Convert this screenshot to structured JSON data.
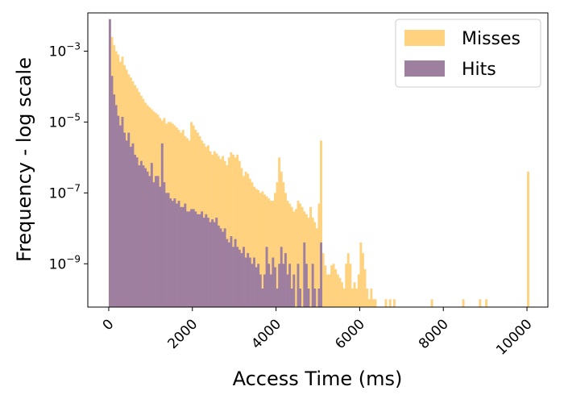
{
  "chart_data": {
    "type": "histogram",
    "title": "",
    "xlabel": "Access Time (ms)",
    "ylabel": "Frequency - log scale",
    "xlim": [
      -500,
      10500
    ],
    "ylim": [
      6e-11,
      0.012
    ],
    "yscale": "log",
    "grid": false,
    "legend_position": "top-right",
    "bin_width_ms": 50,
    "x_ticks": [
      0,
      2000,
      4000,
      6000,
      8000,
      10000
    ],
    "x_tick_labels": [
      "0",
      "2000",
      "4000",
      "6000",
      "8000",
      "10000"
    ],
    "y_ticks": [
      1e-09,
      1e-07,
      1e-05,
      0.001
    ],
    "y_tick_labels": [
      {
        "base": "10",
        "exp": "−9"
      },
      {
        "base": "10",
        "exp": "−7"
      },
      {
        "base": "10",
        "exp": "−5"
      },
      {
        "base": "10",
        "exp": "−3"
      }
    ],
    "series": [
      {
        "name": "Misses",
        "color": "#ffd27f",
        "bins": [
          [
            0,
            0.002
          ],
          [
            50,
            0.0025
          ],
          [
            100,
            0.0015
          ],
          [
            150,
            0.001
          ],
          [
            200,
            0.0008
          ],
          [
            250,
            0.0005
          ],
          [
            300,
            0.0007
          ],
          [
            350,
            0.0004
          ],
          [
            400,
            0.0003
          ],
          [
            450,
            0.00022
          ],
          [
            500,
            0.00018
          ],
          [
            550,
            0.00014
          ],
          [
            600,
            0.00011
          ],
          [
            650,
            9e-05
          ],
          [
            700,
            7e-05
          ],
          [
            750,
            5.5e-05
          ],
          [
            800,
            4.5e-05
          ],
          [
            850,
            3.5e-05
          ],
          [
            900,
            3e-05
          ],
          [
            950,
            2.6e-05
          ],
          [
            1000,
            2.3e-05
          ],
          [
            1050,
            2e-05
          ],
          [
            1100,
            1.8e-05
          ],
          [
            1150,
            1.6e-05
          ],
          [
            1200,
            1.3e-05
          ],
          [
            1250,
            1.1e-05
          ],
          [
            1300,
            1.3e-05
          ],
          [
            1350,
            9e-06
          ],
          [
            1400,
            1e-05
          ],
          [
            1450,
            1e-05
          ],
          [
            1500,
            9e-06
          ],
          [
            1550,
            8e-06
          ],
          [
            1600,
            7e-06
          ],
          [
            1650,
            6e-06
          ],
          [
            1700,
            5e-06
          ],
          [
            1750,
            6e-06
          ],
          [
            1800,
            4e-06
          ],
          [
            1850,
            3.5e-06
          ],
          [
            1900,
            3e-06
          ],
          [
            1950,
            1e-05
          ],
          [
            2000,
            8e-06
          ],
          [
            2050,
            6e-06
          ],
          [
            2100,
            5e-06
          ],
          [
            2150,
            4e-06
          ],
          [
            2200,
            3e-06
          ],
          [
            2250,
            2.5e-06
          ],
          [
            2300,
            2e-06
          ],
          [
            2350,
            2.2e-06
          ],
          [
            2400,
            1.5e-06
          ],
          [
            2450,
            1.2e-06
          ],
          [
            2500,
            1.5e-06
          ],
          [
            2550,
            1.3e-06
          ],
          [
            2600,
            1.1e-06
          ],
          [
            2650,
            9e-07
          ],
          [
            2700,
            1.1e-06
          ],
          [
            2750,
            8e-07
          ],
          [
            2800,
            6e-07
          ],
          [
            2850,
            1e-06
          ],
          [
            2900,
            1.4e-06
          ],
          [
            2950,
            1.2e-06
          ],
          [
            3000,
            1e-06
          ],
          [
            3050,
            1.2e-06
          ],
          [
            3100,
            8e-07
          ],
          [
            3150,
            5e-07
          ],
          [
            3200,
            3e-07
          ],
          [
            3250,
            4e-07
          ],
          [
            3300,
            3.5e-07
          ],
          [
            3350,
            2.5e-07
          ],
          [
            3400,
            2e-07
          ],
          [
            3450,
            1.5e-07
          ],
          [
            3500,
            1.3e-07
          ],
          [
            3550,
            1.2e-07
          ],
          [
            3600,
            1e-07
          ],
          [
            3650,
            1.1e-07
          ],
          [
            3700,
            9e-08
          ],
          [
            3750,
            8e-08
          ],
          [
            3800,
            7e-08
          ],
          [
            3850,
            6e-08
          ],
          [
            3900,
            6e-08
          ],
          [
            3950,
            1e-07
          ],
          [
            4000,
            2e-07
          ],
          [
            4050,
            1e-06
          ],
          [
            4100,
            4e-07
          ],
          [
            4150,
            2e-07
          ],
          [
            4200,
            1e-07
          ],
          [
            4250,
            6e-08
          ],
          [
            4300,
            5e-08
          ],
          [
            4350,
            4e-08
          ],
          [
            4400,
            3e-08
          ],
          [
            4450,
            3.5e-08
          ],
          [
            4500,
            6e-08
          ],
          [
            4550,
            5e-08
          ],
          [
            4600,
            4e-08
          ],
          [
            4650,
            3e-08
          ],
          [
            4700,
            2.5e-08
          ],
          [
            4750,
            2e-08
          ],
          [
            4800,
            4e-08
          ],
          [
            4850,
            2e-08
          ],
          [
            4900,
            1.5e-08
          ],
          [
            4950,
            1e-08
          ],
          [
            5000,
            5e-08
          ],
          [
            5050,
            3e-06
          ],
          [
            5100,
            2e-09
          ],
          [
            5150,
            9e-10
          ],
          [
            5200,
            5e-10
          ],
          [
            5250,
            5e-10
          ],
          [
            5300,
            9e-10
          ],
          [
            5350,
            1e-09
          ],
          [
            5400,
            7e-10
          ],
          [
            5450,
            5e-10
          ],
          [
            5500,
            4e-10
          ],
          [
            5550,
            3e-10
          ],
          [
            5600,
            2e-10
          ],
          [
            5650,
            1e-09
          ],
          [
            5700,
            2e-09
          ],
          [
            5750,
            1e-09
          ],
          [
            5800,
            2e-10
          ],
          [
            5850,
            3e-10
          ],
          [
            5900,
            2e-10
          ],
          [
            5950,
            5e-10
          ],
          [
            6000,
            4e-09
          ],
          [
            6050,
            2e-09
          ],
          [
            6100,
            7e-10
          ],
          [
            6150,
            2e-10
          ],
          [
            6200,
            1e-10
          ],
          [
            6250,
            2e-10
          ],
          [
            6300,
            1e-10
          ],
          [
            6350,
            1e-10
          ],
          [
            6600,
            1e-10
          ],
          [
            6700,
            1e-10
          ],
          [
            6800,
            1e-10
          ],
          [
            7700,
            1e-10
          ],
          [
            8450,
            1e-10
          ],
          [
            8850,
            1e-10
          ],
          [
            9000,
            1e-10
          ],
          [
            10000,
            4e-07
          ]
        ]
      },
      {
        "name": "Hits",
        "color": "#9e7f9f",
        "bins": [
          [
            0,
            0.008
          ],
          [
            50,
            0.0002
          ],
          [
            100,
            6e-05
          ],
          [
            150,
            3e-05
          ],
          [
            200,
            1.5e-05
          ],
          [
            250,
            8e-06
          ],
          [
            300,
            1.4e-05
          ],
          [
            350,
            5e-06
          ],
          [
            400,
            3e-06
          ],
          [
            450,
            5e-06
          ],
          [
            500,
            2e-06
          ],
          [
            550,
            2.5e-06
          ],
          [
            600,
            1.2e-06
          ],
          [
            650,
            1e-06
          ],
          [
            700,
            6e-07
          ],
          [
            750,
            8e-07
          ],
          [
            800,
            6e-07
          ],
          [
            850,
            5e-07
          ],
          [
            900,
            4e-07
          ],
          [
            950,
            3e-07
          ],
          [
            1000,
            7e-07
          ],
          [
            1050,
            2e-07
          ],
          [
            1100,
            3e-07
          ],
          [
            1150,
            3e-07
          ],
          [
            1200,
            1.5e-07
          ],
          [
            1250,
            2.5e-06
          ],
          [
            1300,
            2e-07
          ],
          [
            1350,
            1e-07
          ],
          [
            1400,
            1e-07
          ],
          [
            1450,
            7e-08
          ],
          [
            1500,
            6e-08
          ],
          [
            1550,
            7e-08
          ],
          [
            1600,
            5e-08
          ],
          [
            1650,
            6e-08
          ],
          [
            1700,
            4e-08
          ],
          [
            1750,
            4e-08
          ],
          [
            1800,
            5e-08
          ],
          [
            1850,
            3e-08
          ],
          [
            1900,
            3e-08
          ],
          [
            1950,
            3.5e-08
          ],
          [
            2000,
            3.5e-08
          ],
          [
            2050,
            3e-08
          ],
          [
            2100,
            2.5e-08
          ],
          [
            2150,
            2.5e-08
          ],
          [
            2200,
            3e-08
          ],
          [
            2250,
            2e-08
          ],
          [
            2300,
            2.5e-08
          ],
          [
            2350,
            2e-08
          ],
          [
            2400,
            1.5e-08
          ],
          [
            2450,
            1.8e-08
          ],
          [
            2500,
            1.5e-08
          ],
          [
            2550,
            2e-08
          ],
          [
            2600,
            1.2e-08
          ],
          [
            2650,
            1e-08
          ],
          [
            2700,
            8e-09
          ],
          [
            2750,
            1e-08
          ],
          [
            2800,
            5e-09
          ],
          [
            2850,
            4e-09
          ],
          [
            2900,
            6e-09
          ],
          [
            2950,
            3e-09
          ],
          [
            3000,
            5e-09
          ],
          [
            3050,
            3e-09
          ],
          [
            3100,
            2.5e-09
          ],
          [
            3150,
            2e-09
          ],
          [
            3200,
            3e-09
          ],
          [
            3250,
            1.5e-09
          ],
          [
            3300,
            2e-09
          ],
          [
            3350,
            1.5e-09
          ],
          [
            3400,
            1e-09
          ],
          [
            3450,
            1.5e-09
          ],
          [
            3500,
            8e-10
          ],
          [
            3550,
            1e-09
          ],
          [
            3600,
            5e-10
          ],
          [
            3650,
            2e-10
          ],
          [
            3700,
            5e-10
          ],
          [
            3750,
            3e-09
          ],
          [
            3800,
            1e-09
          ],
          [
            3850,
            5e-10
          ],
          [
            3900,
            1.5e-09
          ],
          [
            3950,
            8e-10
          ],
          [
            4000,
            2e-10
          ],
          [
            4050,
            1e-09
          ],
          [
            4100,
            3e-09
          ],
          [
            4150,
            1e-09
          ],
          [
            4200,
            2e-09
          ],
          [
            4250,
            5e-10
          ],
          [
            4300,
            1e-09
          ],
          [
            4350,
            2e-10
          ],
          [
            4400,
            5e-10
          ],
          [
            4500,
            1e-09
          ],
          [
            4550,
            2e-10
          ],
          [
            4650,
            4e-09
          ],
          [
            4700,
            1e-09
          ],
          [
            4750,
            2e-10
          ],
          [
            4850,
            1e-09
          ],
          [
            4900,
            2e-10
          ],
          [
            5000,
            2e-10
          ],
          [
            5050,
            4e-09
          ]
        ]
      }
    ]
  }
}
